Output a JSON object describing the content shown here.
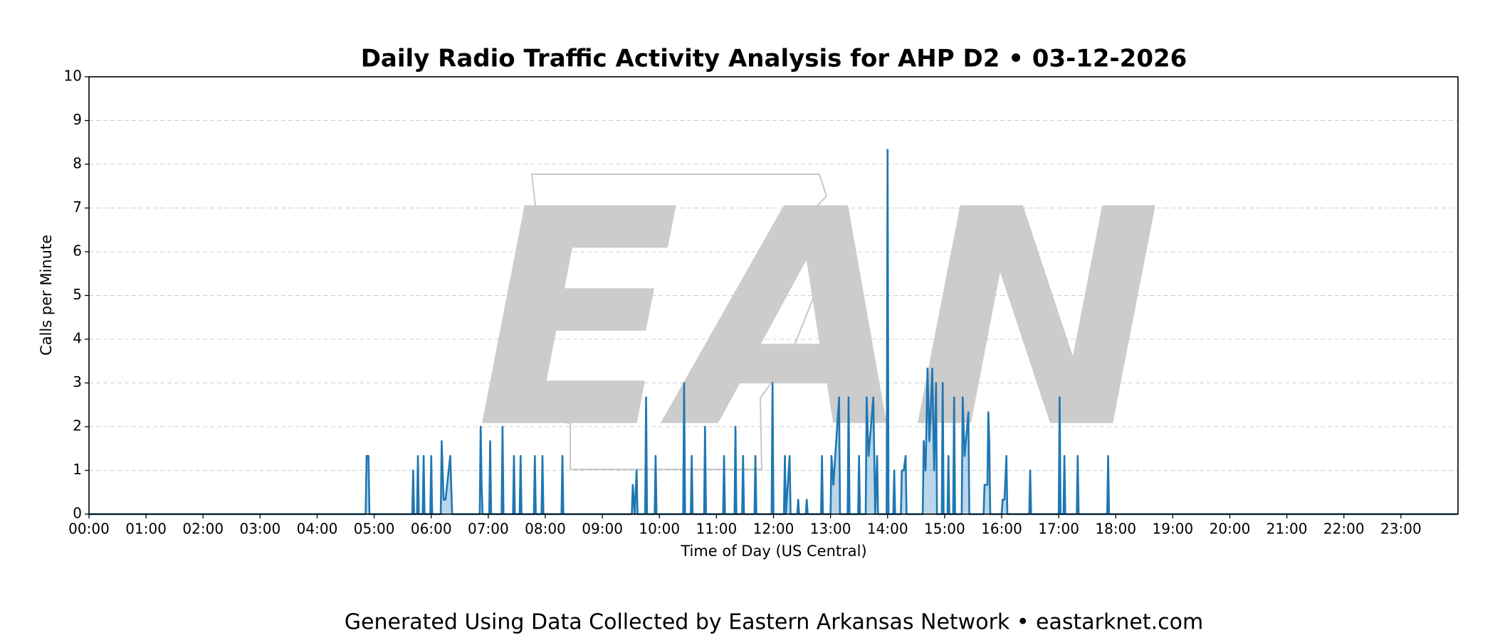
{
  "chart_data": {
    "type": "line",
    "title": "Daily Radio Traffic Activity Analysis for AHP D2 • 03-12-2026",
    "xlabel": "Time of Day (US Central)",
    "ylabel": "Calls per Minute",
    "watermark": "EAN",
    "footer": "Generated Using Data Collected by Eastern Arkansas Network • eastarknet.com",
    "color": "#1f77b4",
    "grid": true,
    "xlim": [
      "00:00",
      "24:00"
    ],
    "xticks": [
      "00:00",
      "01:00",
      "02:00",
      "03:00",
      "04:00",
      "05:00",
      "06:00",
      "07:00",
      "08:00",
      "09:00",
      "10:00",
      "11:00",
      "12:00",
      "13:00",
      "14:00",
      "15:00",
      "16:00",
      "17:00",
      "18:00",
      "19:00",
      "20:00",
      "21:00",
      "22:00",
      "23:00"
    ],
    "ylim": [
      0,
      10
    ],
    "yticks": [
      0,
      1,
      2,
      3,
      4,
      5,
      6,
      7,
      8,
      9,
      10
    ],
    "x": [
      "00:00",
      "04:51",
      "04:52",
      "04:54",
      "04:55",
      "05:40",
      "05:41",
      "05:42",
      "05:45",
      "05:46",
      "05:47",
      "05:51",
      "05:52",
      "05:53",
      "05:59",
      "06:00",
      "06:01",
      "06:10",
      "06:11",
      "06:13",
      "06:15",
      "06:20",
      "06:22",
      "06:51",
      "06:52",
      "06:53",
      "06:54",
      "07:01",
      "07:02",
      "07:03",
      "07:14",
      "07:15",
      "07:16",
      "07:26",
      "07:27",
      "07:28",
      "07:33",
      "07:34",
      "07:35",
      "07:48",
      "07:49",
      "07:50",
      "07:56",
      "07:57",
      "07:58",
      "08:17",
      "08:18",
      "08:19",
      "09:31",
      "09:32",
      "09:34",
      "09:36",
      "09:37",
      "09:45",
      "09:46",
      "09:47",
      "09:55",
      "09:56",
      "09:57",
      "10:25",
      "10:26",
      "10:27",
      "10:33",
      "10:34",
      "10:35",
      "10:47",
      "10:48",
      "10:49",
      "11:07",
      "11:08",
      "11:09",
      "11:19",
      "11:20",
      "11:21",
      "11:27",
      "11:28",
      "11:29",
      "11:40",
      "11:41",
      "11:42",
      "11:58",
      "11:59",
      "12:00",
      "12:11",
      "12:12",
      "12:13",
      "12:17",
      "12:18",
      "12:25",
      "12:26",
      "12:27",
      "12:34",
      "12:35",
      "12:36",
      "12:50",
      "12:51",
      "12:52",
      "13:00",
      "13:01",
      "13:03",
      "13:09",
      "13:10",
      "13:18",
      "13:19",
      "13:20",
      "13:29",
      "13:30",
      "13:31",
      "13:37",
      "13:38",
      "13:40",
      "13:45",
      "13:47",
      "13:49",
      "13:50",
      "13:59",
      "14:00",
      "14:01",
      "14:06",
      "14:07",
      "14:08",
      "14:14",
      "14:15",
      "14:17",
      "14:19",
      "14:20",
      "14:37",
      "14:38",
      "14:40",
      "14:42",
      "14:44",
      "14:47",
      "14:49",
      "14:51",
      "14:52",
      "14:57",
      "14:58",
      "14:59",
      "15:03",
      "15:04",
      "15:05",
      "15:09",
      "15:10",
      "15:11",
      "15:18",
      "15:19",
      "15:21",
      "15:25",
      "15:26",
      "15:41",
      "15:42",
      "15:45",
      "15:46",
      "15:47",
      "15:48",
      "16:00",
      "16:01",
      "16:03",
      "16:05",
      "16:06",
      "16:29",
      "16:30",
      "16:31",
      "17:00",
      "17:01",
      "17:02",
      "17:05",
      "17:06",
      "17:07",
      "17:19",
      "17:20",
      "17:21",
      "17:51",
      "17:52",
      "17:53",
      "23:59"
    ],
    "values": [
      0,
      0,
      1.33,
      1.33,
      0,
      0,
      1,
      0,
      0,
      1.33,
      0,
      0,
      1.33,
      0,
      0,
      1.33,
      0,
      0,
      1.67,
      0.33,
      0.33,
      1.33,
      0,
      0,
      2,
      0.67,
      0,
      0,
      1.67,
      0,
      0,
      2,
      0,
      0,
      1.33,
      0,
      0,
      1.33,
      0,
      0,
      1.33,
      0,
      0,
      1.33,
      0,
      0,
      1.33,
      0,
      0,
      0.67,
      0,
      1,
      0,
      0,
      2.67,
      0,
      0,
      1.33,
      0,
      0,
      3,
      0,
      0,
      1.33,
      0,
      0,
      2,
      0,
      0,
      1.33,
      0,
      0,
      2,
      0,
      0,
      1.33,
      0,
      0,
      1.33,
      0,
      0,
      3,
      0,
      0,
      1.33,
      0,
      1.33,
      0,
      0,
      0.33,
      0,
      0,
      0.33,
      0,
      0,
      1.33,
      0,
      0,
      1.33,
      0.67,
      2.67,
      0,
      0,
      2.67,
      0,
      0,
      1.33,
      0,
      0,
      2.67,
      1.33,
      2.67,
      0,
      1.33,
      0,
      0,
      8.33,
      0,
      0,
      1,
      0,
      0,
      1,
      1,
      1.33,
      0,
      0,
      1.67,
      1,
      3.33,
      1.67,
      3.33,
      1,
      3,
      0,
      0,
      3,
      0,
      0,
      1.33,
      0,
      0,
      2.67,
      0,
      0,
      2.67,
      1.33,
      2.33,
      0,
      0,
      0.67,
      0.67,
      2.33,
      1.67,
      0,
      0,
      0.33,
      0.33,
      1.33,
      0,
      0,
      1,
      0,
      0,
      2.67,
      0,
      0,
      1.33,
      0,
      0,
      1.33,
      0,
      0,
      1.33,
      0,
      0
    ]
  }
}
